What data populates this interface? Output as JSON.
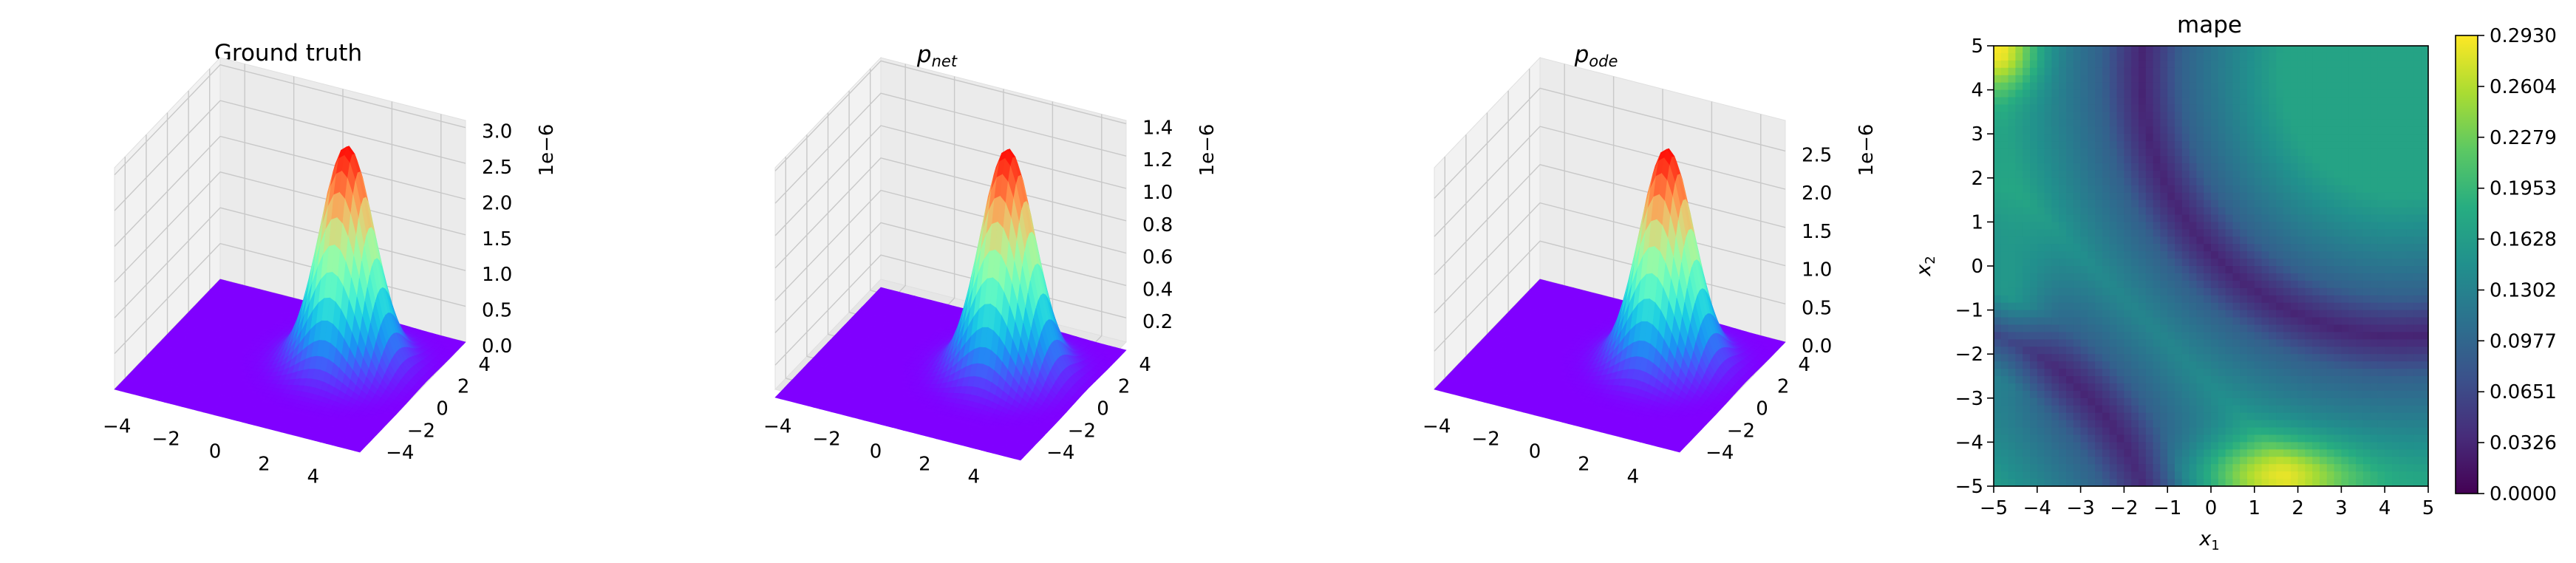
{
  "chart_data": [
    {
      "type": "surface3d",
      "title": "Ground truth",
      "x_ticks": [
        "−4",
        "−2",
        "0",
        "2",
        "4"
      ],
      "y_ticks": [
        "−4",
        "−2",
        "0",
        "2",
        "4"
      ],
      "z_ticks": [
        "0.0",
        "0.5",
        "1.0",
        "1.5",
        "2.0",
        "2.5",
        "3.0"
      ],
      "z_offset": "1e−6",
      "xlim": [
        -5,
        5
      ],
      "ylim": [
        -5,
        5
      ],
      "zlim": [
        0,
        3.1e-06
      ],
      "surface": {
        "function": "gaussian",
        "peak": 3.05e-06,
        "center": [
          1.8,
          1.2
        ],
        "sigma": [
          1.0,
          1.2
        ]
      },
      "colormap": "rainbow"
    },
    {
      "type": "surface3d",
      "title": "p_net",
      "title_main": "p",
      "title_sub": "net",
      "x_ticks": [
        "−4",
        "−2",
        "0",
        "2",
        "4"
      ],
      "y_ticks": [
        "−4",
        "−2",
        "0",
        "2",
        "4"
      ],
      "z_ticks": [
        "0.2",
        "0.4",
        "0.6",
        "0.8",
        "1.0",
        "1.2",
        "1.4"
      ],
      "z_offset": "1e−6",
      "xlim": [
        -5,
        5
      ],
      "ylim": [
        -5,
        5
      ],
      "zlim": [
        5e-08,
        1.42e-06
      ],
      "surface": {
        "function": "gaussian",
        "peak": 1.38e-06,
        "center": [
          1.8,
          1.2
        ],
        "sigma": [
          1.0,
          1.2
        ]
      },
      "colormap": "rainbow"
    },
    {
      "type": "surface3d",
      "title": "p_ode",
      "title_main": "p",
      "title_sub": "ode",
      "x_ticks": [
        "−4",
        "−2",
        "0",
        "2",
        "4"
      ],
      "y_ticks": [
        "−4",
        "−2",
        "0",
        "2",
        "4"
      ],
      "z_ticks": [
        "0.0",
        "0.5",
        "1.0",
        "1.5",
        "2.0",
        "2.5"
      ],
      "z_offset": "1e−6",
      "xlim": [
        -5,
        5
      ],
      "ylim": [
        -5,
        5
      ],
      "zlim": [
        0,
        2.9e-06
      ],
      "surface": {
        "function": "gaussian",
        "peak": 2.82e-06,
        "center": [
          1.8,
          1.2
        ],
        "sigma": [
          1.0,
          1.2
        ]
      },
      "colormap": "rainbow"
    },
    {
      "type": "heatmap",
      "title": "mape",
      "xlabel": "x",
      "xlabel_sub": "1",
      "ylabel": "x",
      "ylabel_sub": "2",
      "x_ticks": [
        "−5",
        "−4",
        "−3",
        "−2",
        "−1",
        "0",
        "1",
        "2",
        "3",
        "4",
        "5"
      ],
      "y_ticks": [
        "−5",
        "−4",
        "−3",
        "−2",
        "−1",
        "0",
        "1",
        "2",
        "3",
        "4",
        "5"
      ],
      "xlim": [
        -5,
        5
      ],
      "ylim": [
        -5,
        5
      ],
      "colormap": "viridis",
      "colorbar_ticks": [
        "0.0000",
        "0.0326",
        "0.0651",
        "0.0977",
        "0.1302",
        "0.1628",
        "0.1953",
        "0.2279",
        "0.2604",
        "0.2930"
      ],
      "clim": [
        0,
        0.293
      ]
    }
  ]
}
